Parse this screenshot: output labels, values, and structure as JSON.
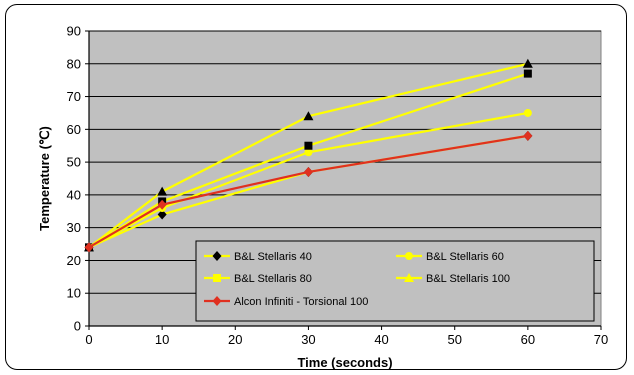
{
  "chart_data": {
    "type": "line",
    "title": "",
    "xlabel": "Time (seconds)",
    "ylabel": "Temperature (℃)",
    "xlim": [
      0,
      70
    ],
    "ylim": [
      0,
      90
    ],
    "xticks": [
      0,
      10,
      20,
      30,
      40,
      50,
      60,
      70
    ],
    "yticks": [
      0,
      10,
      20,
      30,
      40,
      50,
      60,
      70,
      80,
      90
    ],
    "grid": "horizontal",
    "plot_background": "#c0c0c0",
    "legend_position": "inside-bottom-center",
    "series": [
      {
        "name": "B&L Stellaris 40",
        "color": "#ffff00",
        "marker": "diamond",
        "marker_color": "#000000",
        "x": [
          0,
          10,
          30,
          60
        ],
        "y": [
          24,
          34,
          47,
          58
        ]
      },
      {
        "name": "B&L Stellaris 60",
        "color": "#ffff00",
        "marker": "circle",
        "marker_color": "#ffff00",
        "x": [
          0,
          10,
          30,
          60
        ],
        "y": [
          24,
          36,
          53,
          65
        ]
      },
      {
        "name": "B&L Stellaris 80",
        "color": "#ffff00",
        "marker": "square",
        "marker_color": "#000000",
        "x": [
          0,
          10,
          30,
          60
        ],
        "y": [
          24,
          38,
          55,
          77
        ]
      },
      {
        "name": "B&L Stellaris 100",
        "color": "#ffff00",
        "marker": "triangle",
        "marker_color": "#000000",
        "x": [
          0,
          10,
          30,
          60
        ],
        "y": [
          24,
          41,
          64,
          80
        ]
      },
      {
        "name": "Alcon Infiniti - Torsional 100",
        "color": "#e03020",
        "marker": "diamond",
        "marker_color": "#e03020",
        "x": [
          0,
          10,
          30,
          60
        ],
        "y": [
          24,
          37,
          47,
          58
        ]
      }
    ]
  }
}
